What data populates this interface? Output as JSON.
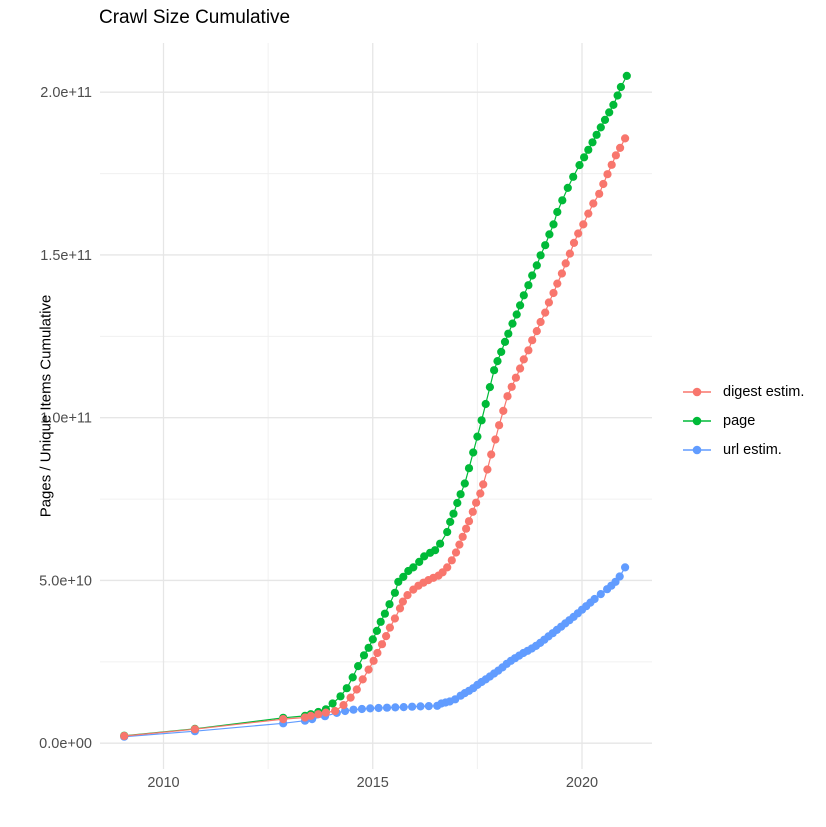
{
  "title": "Crawl Size Cumulative",
  "y_axis": {
    "label": "Pages / Unique Items Cumulative",
    "tick_labels": [
      "0.0e+00",
      "5.0e+10",
      "1.0e+11",
      "1.5e+11",
      "2.0e+11"
    ],
    "tick_values_billions": [
      0,
      50,
      100,
      150,
      200
    ],
    "minor_values_billions": [
      25,
      75,
      125,
      175
    ]
  },
  "x_axis": {
    "tick_labels": [
      "2010",
      "2015",
      "2020"
    ],
    "tick_values": [
      2010,
      2015,
      2020
    ],
    "minor_values": [
      2012.5,
      2017.5
    ]
  },
  "legend": {
    "position": "right",
    "entries": [
      {
        "label": "digest estim.",
        "color": "#F8766D"
      },
      {
        "label": "page",
        "color": "#00BA38"
      },
      {
        "label": "url estim.",
        "color": "#619CFF"
      }
    ]
  },
  "colors": {
    "background": "#ffffff",
    "grid_major": "#E6E6E6",
    "grid_minor": "#F0F0F0",
    "tick_label": "#4D4D4D",
    "title": "#000000"
  },
  "chart_data": {
    "type": "scatter",
    "title": "Crawl Size Cumulative",
    "xlabel": "",
    "ylabel": "Pages / Unique Items Cumulative",
    "x_unit": "year",
    "value_unit": "billions (1e9); y-axis rendered in scientific notation",
    "xlim": [
      2008.45,
      2021.67
    ],
    "ylim_billions": [
      -8,
      215
    ],
    "grid": true,
    "legend_position": "right",
    "series": [
      {
        "name": "url estim.",
        "color": "#619CFF",
        "points": [
          [
            2009.06,
            2.0
          ],
          [
            2010.75,
            3.7
          ],
          [
            2012.86,
            6.1
          ],
          [
            2013.38,
            6.9
          ],
          [
            2013.55,
            7.4
          ],
          [
            2013.86,
            8.3
          ],
          [
            2014.14,
            9.3
          ],
          [
            2014.34,
            9.9
          ],
          [
            2014.54,
            10.3
          ],
          [
            2014.74,
            10.5
          ],
          [
            2014.94,
            10.7
          ],
          [
            2015.14,
            10.8
          ],
          [
            2015.34,
            10.9
          ],
          [
            2015.54,
            11.0
          ],
          [
            2015.74,
            11.1
          ],
          [
            2015.94,
            11.2
          ],
          [
            2016.14,
            11.3
          ],
          [
            2016.34,
            11.4
          ],
          [
            2016.54,
            11.5
          ],
          [
            2016.64,
            12.2
          ],
          [
            2016.74,
            12.5
          ],
          [
            2016.84,
            12.8
          ],
          [
            2016.97,
            13.5
          ],
          [
            2017.1,
            14.6
          ],
          [
            2017.2,
            15.4
          ],
          [
            2017.3,
            16.1
          ],
          [
            2017.4,
            16.9
          ],
          [
            2017.5,
            17.9
          ],
          [
            2017.6,
            18.8
          ],
          [
            2017.7,
            19.6
          ],
          [
            2017.8,
            20.5
          ],
          [
            2017.9,
            21.4
          ],
          [
            2018.0,
            22.3
          ],
          [
            2018.1,
            23.3
          ],
          [
            2018.2,
            24.4
          ],
          [
            2018.3,
            25.3
          ],
          [
            2018.4,
            26.1
          ],
          [
            2018.5,
            26.9
          ],
          [
            2018.6,
            27.7
          ],
          [
            2018.7,
            28.4
          ],
          [
            2018.8,
            29.1
          ],
          [
            2018.9,
            29.9
          ],
          [
            2019.0,
            30.8
          ],
          [
            2019.1,
            31.8
          ],
          [
            2019.2,
            32.8
          ],
          [
            2019.3,
            33.8
          ],
          [
            2019.4,
            34.8
          ],
          [
            2019.5,
            35.8
          ],
          [
            2019.6,
            36.8
          ],
          [
            2019.7,
            37.8
          ],
          [
            2019.8,
            38.8
          ],
          [
            2019.9,
            39.9
          ],
          [
            2020.0,
            41.0
          ],
          [
            2020.1,
            42.1
          ],
          [
            2020.2,
            43.2
          ],
          [
            2020.3,
            44.3
          ],
          [
            2020.45,
            45.8
          ],
          [
            2020.6,
            47.3
          ],
          [
            2020.7,
            48.4
          ],
          [
            2020.8,
            49.6
          ],
          [
            2020.9,
            51.2
          ],
          [
            2021.03,
            54.0
          ]
        ]
      },
      {
        "name": "page",
        "color": "#00BA38",
        "points": [
          [
            2009.06,
            2.3
          ],
          [
            2010.75,
            4.4
          ],
          [
            2012.86,
            7.8
          ],
          [
            2013.38,
            8.4
          ],
          [
            2013.52,
            8.9
          ],
          [
            2013.7,
            9.6
          ],
          [
            2013.88,
            10.4
          ],
          [
            2014.04,
            12.2
          ],
          [
            2014.23,
            14.4
          ],
          [
            2014.38,
            16.9
          ],
          [
            2014.52,
            20.2
          ],
          [
            2014.65,
            23.7
          ],
          [
            2014.79,
            27.0
          ],
          [
            2014.9,
            29.3
          ],
          [
            2015.0,
            31.9
          ],
          [
            2015.1,
            34.5
          ],
          [
            2015.19,
            37.3
          ],
          [
            2015.29,
            39.8
          ],
          [
            2015.4,
            42.7
          ],
          [
            2015.53,
            46.2
          ],
          [
            2015.61,
            49.6
          ],
          [
            2015.73,
            51.1
          ],
          [
            2015.85,
            52.9
          ],
          [
            2015.97,
            54.0
          ],
          [
            2016.11,
            55.7
          ],
          [
            2016.23,
            57.4
          ],
          [
            2016.37,
            58.5
          ],
          [
            2016.49,
            59.3
          ],
          [
            2016.61,
            61.3
          ],
          [
            2016.78,
            64.9
          ],
          [
            2016.85,
            68.0
          ],
          [
            2016.93,
            70.5
          ],
          [
            2017.02,
            73.8
          ],
          [
            2017.1,
            76.5
          ],
          [
            2017.2,
            79.8
          ],
          [
            2017.3,
            84.5
          ],
          [
            2017.4,
            89.3
          ],
          [
            2017.5,
            94.2
          ],
          [
            2017.6,
            99.2
          ],
          [
            2017.7,
            104.2
          ],
          [
            2017.8,
            109.4
          ],
          [
            2017.9,
            114.6
          ],
          [
            2017.98,
            117.4
          ],
          [
            2018.07,
            120.2
          ],
          [
            2018.16,
            123.3
          ],
          [
            2018.24,
            125.8
          ],
          [
            2018.34,
            128.9
          ],
          [
            2018.44,
            131.7
          ],
          [
            2018.52,
            134.5
          ],
          [
            2018.61,
            137.6
          ],
          [
            2018.72,
            140.7
          ],
          [
            2018.81,
            143.7
          ],
          [
            2018.92,
            146.8
          ],
          [
            2019.01,
            149.9
          ],
          [
            2019.12,
            153.0
          ],
          [
            2019.22,
            156.3
          ],
          [
            2019.32,
            159.4
          ],
          [
            2019.41,
            163.2
          ],
          [
            2019.53,
            166.8
          ],
          [
            2019.66,
            170.6
          ],
          [
            2019.79,
            174.0
          ],
          [
            2019.94,
            177.6
          ],
          [
            2020.05,
            180.0
          ],
          [
            2020.15,
            182.3
          ],
          [
            2020.25,
            184.6
          ],
          [
            2020.35,
            186.9
          ],
          [
            2020.45,
            189.2
          ],
          [
            2020.55,
            191.5
          ],
          [
            2020.65,
            193.8
          ],
          [
            2020.75,
            196.1
          ],
          [
            2020.85,
            199.0
          ],
          [
            2020.93,
            201.6
          ],
          [
            2021.07,
            205.0
          ]
        ]
      },
      {
        "name": "digest estim.",
        "color": "#F8766D",
        "points": [
          [
            2009.06,
            2.2
          ],
          [
            2010.75,
            4.3
          ],
          [
            2012.86,
            7.4
          ],
          [
            2013.38,
            7.9
          ],
          [
            2013.52,
            8.4
          ],
          [
            2013.7,
            8.9
          ],
          [
            2013.88,
            9.4
          ],
          [
            2014.1,
            9.9
          ],
          [
            2014.3,
            11.7
          ],
          [
            2014.47,
            14.0
          ],
          [
            2014.62,
            16.5
          ],
          [
            2014.76,
            19.6
          ],
          [
            2014.9,
            22.6
          ],
          [
            2015.02,
            25.3
          ],
          [
            2015.11,
            27.7
          ],
          [
            2015.22,
            30.4
          ],
          [
            2015.32,
            32.9
          ],
          [
            2015.41,
            35.5
          ],
          [
            2015.53,
            38.3
          ],
          [
            2015.65,
            41.4
          ],
          [
            2015.72,
            43.5
          ],
          [
            2015.83,
            45.5
          ],
          [
            2015.97,
            47.2
          ],
          [
            2016.09,
            48.4
          ],
          [
            2016.21,
            49.3
          ],
          [
            2016.33,
            50.1
          ],
          [
            2016.45,
            50.8
          ],
          [
            2016.57,
            51.5
          ],
          [
            2016.67,
            52.5
          ],
          [
            2016.78,
            54.0
          ],
          [
            2016.89,
            56.2
          ],
          [
            2016.99,
            58.6
          ],
          [
            2017.07,
            61.0
          ],
          [
            2017.15,
            63.4
          ],
          [
            2017.23,
            65.9
          ],
          [
            2017.3,
            68.2
          ],
          [
            2017.39,
            71.1
          ],
          [
            2017.47,
            73.9
          ],
          [
            2017.57,
            76.7
          ],
          [
            2017.64,
            79.5
          ],
          [
            2017.74,
            84.1
          ],
          [
            2017.83,
            88.7
          ],
          [
            2017.93,
            93.3
          ],
          [
            2018.02,
            97.7
          ],
          [
            2018.12,
            102.1
          ],
          [
            2018.22,
            106.6
          ],
          [
            2018.32,
            109.5
          ],
          [
            2018.42,
            112.3
          ],
          [
            2018.52,
            115.1
          ],
          [
            2018.61,
            117.9
          ],
          [
            2018.72,
            120.7
          ],
          [
            2018.81,
            123.8
          ],
          [
            2018.92,
            126.6
          ],
          [
            2019.01,
            129.4
          ],
          [
            2019.12,
            132.3
          ],
          [
            2019.21,
            135.4
          ],
          [
            2019.32,
            138.3
          ],
          [
            2019.41,
            141.2
          ],
          [
            2019.52,
            144.3
          ],
          [
            2019.61,
            147.4
          ],
          [
            2019.71,
            150.4
          ],
          [
            2019.81,
            153.7
          ],
          [
            2019.91,
            156.6
          ],
          [
            2020.03,
            159.4
          ],
          [
            2020.15,
            162.7
          ],
          [
            2020.27,
            165.8
          ],
          [
            2020.41,
            168.8
          ],
          [
            2020.51,
            171.8
          ],
          [
            2020.61,
            174.8
          ],
          [
            2020.71,
            177.7
          ],
          [
            2020.81,
            180.6
          ],
          [
            2020.91,
            182.9
          ],
          [
            2021.03,
            185.8
          ]
        ]
      }
    ]
  }
}
